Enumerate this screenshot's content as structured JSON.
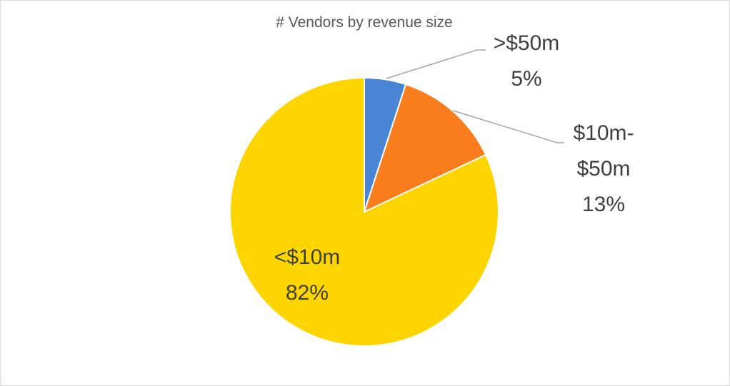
{
  "chart_data": {
    "type": "pie",
    "title": "# Vendors by revenue size",
    "categories": [
      ">$50m",
      "$10m-$50m",
      "<$10m"
    ],
    "values": [
      5,
      13,
      82
    ],
    "value_labels": [
      "5%",
      "13%",
      "82%"
    ],
    "colors": [
      "#4a84d5",
      "#f97d1c",
      "#ffd500"
    ]
  }
}
